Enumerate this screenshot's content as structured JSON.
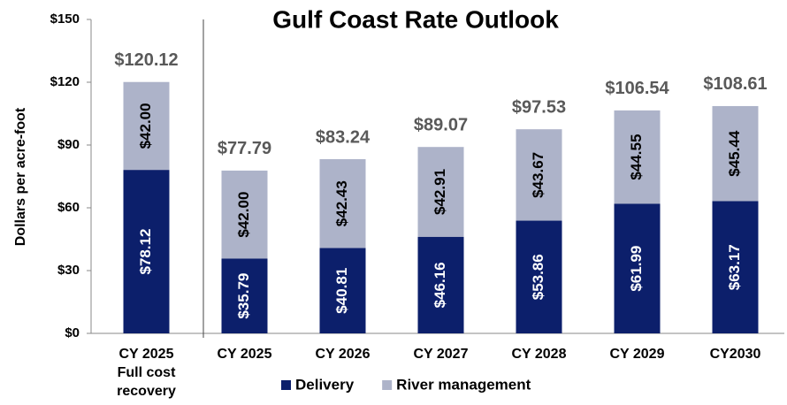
{
  "chart_data": {
    "type": "stacked_bar",
    "title": "Gulf Coast Rate Outlook",
    "ylabel": "Dollars per acre-foot",
    "categories": [
      "CY 2025\nFull cost\nrecovery",
      "CY 2025",
      "CY 2026",
      "CY 2027",
      "CY 2028",
      "CY 2029",
      "CY2030"
    ],
    "series": [
      {
        "name": "Delivery",
        "color": "#0c1f6b",
        "values": [
          78.12,
          35.79,
          40.81,
          46.16,
          53.86,
          61.99,
          63.17
        ],
        "value_labels": [
          "$78.12",
          "$35.79",
          "$40.81",
          "$46.16",
          "$53.86",
          "$61.99",
          "$63.17"
        ]
      },
      {
        "name": "River management",
        "color": "#adb3c9",
        "values": [
          42.0,
          42.0,
          42.43,
          42.91,
          43.67,
          44.55,
          45.44
        ],
        "value_labels": [
          "$42.00",
          "$42.00",
          "$42.43",
          "$42.91",
          "$43.67",
          "$44.55",
          "$45.44"
        ]
      }
    ],
    "totals": [
      120.12,
      77.79,
      83.24,
      89.07,
      97.53,
      106.54,
      108.61
    ],
    "total_labels": [
      "$120.12",
      "$77.79",
      "$83.24",
      "$89.07",
      "$97.53",
      "$106.54",
      "$108.61"
    ],
    "ylim": [
      0,
      150
    ],
    "yticks": [
      {
        "value": 0,
        "label": "$0"
      },
      {
        "value": 30,
        "label": "$30"
      },
      {
        "value": 60,
        "label": "$60"
      },
      {
        "value": 90,
        "label": "$90"
      },
      {
        "value": 120,
        "label": "$120"
      },
      {
        "value": 150,
        "label": "$150"
      }
    ],
    "legend": "bottom"
  }
}
